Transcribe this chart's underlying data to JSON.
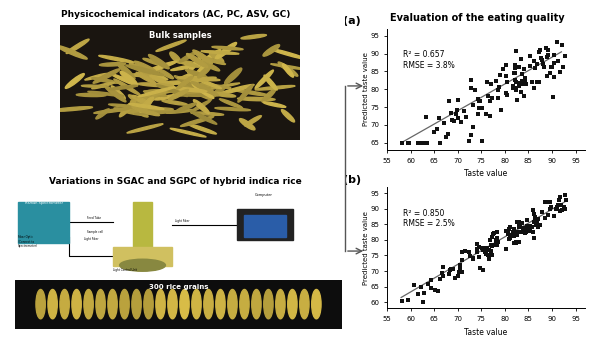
{
  "title_right": "Evaluation of the eating quality",
  "title_left_top": "Physicochemical indicators (AC, PC, ASV, GC)",
  "title_left_bottom": "Variations in SGAC and SGPC of hybrid indica rice",
  "label_top_image": "Bulk samples",
  "label_bottom_image": "300 rice grains",
  "plot_a": {
    "label": "(a)",
    "r2": "R² = 0.657",
    "rmse": "RMSE = 3.8%",
    "xlabel": "Taste value",
    "ylabel": "Predicted taste value",
    "xlim": [
      55,
      97
    ],
    "ylim": [
      63,
      97
    ],
    "xticks": [
      55,
      60,
      65,
      70,
      75,
      80,
      85,
      90,
      95
    ],
    "yticks": [
      65,
      70,
      75,
      80,
      85,
      90,
      95
    ],
    "line_x": [
      58,
      92
    ],
    "line_y": [
      65.0,
      90.5
    ]
  },
  "plot_b": {
    "label": "(b)",
    "r2": "R² = 0.850",
    "rmse": "RMSE = 2.5%",
    "xlabel": "Taste value",
    "ylabel": "Predicted taste value",
    "xlim": [
      55,
      97
    ],
    "ylim": [
      58,
      97
    ],
    "xticks": [
      55,
      60,
      65,
      70,
      75,
      80,
      85,
      90,
      95
    ],
    "yticks": [
      60,
      65,
      70,
      75,
      80,
      85,
      90,
      95
    ],
    "line_x": [
      58,
      93
    ],
    "line_y": [
      61.5,
      92.5
    ]
  },
  "scatter_color": "#111111",
  "line_color": "#666666",
  "bg_color": "#ffffff"
}
